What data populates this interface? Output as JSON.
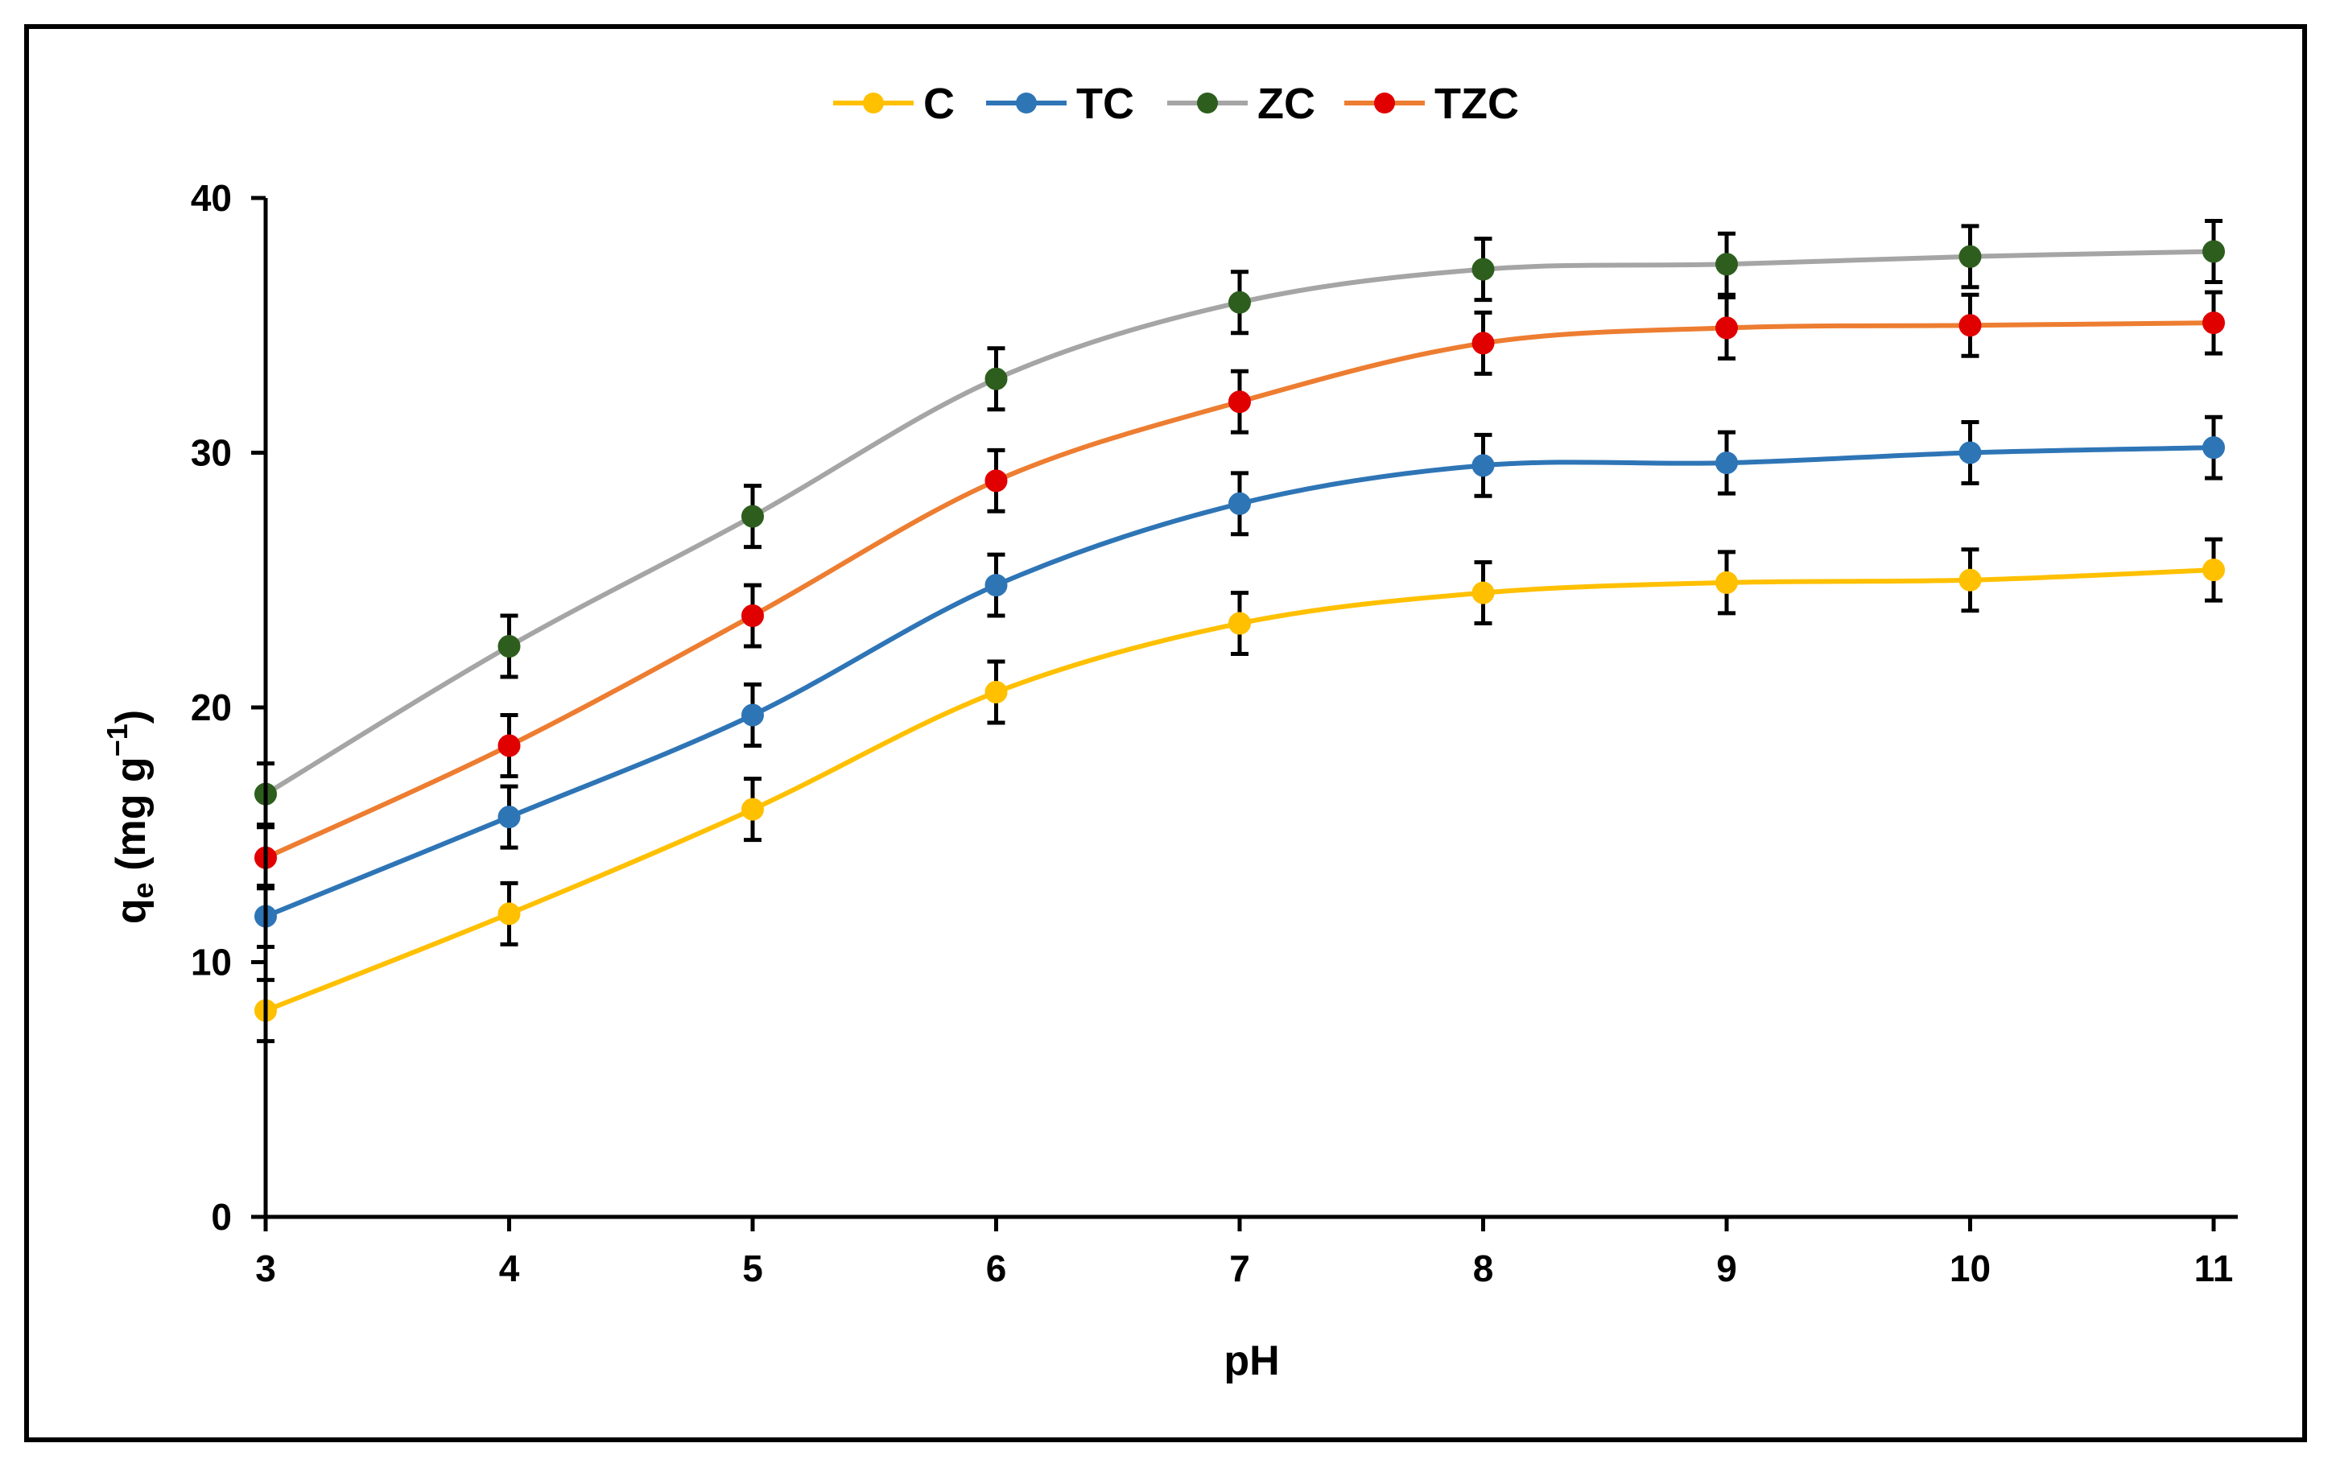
{
  "chart_data": {
    "type": "line",
    "title": "",
    "xlabel": "pH",
    "ylabel": {
      "base": "q",
      "subscript": "e",
      "units_prefix": " (mg g",
      "units_superscript": "−1",
      "units_suffix": ")"
    },
    "x": [
      3,
      4,
      5,
      6,
      7,
      8,
      9,
      10,
      11
    ],
    "x_tick_labels": [
      "3",
      "4",
      "5",
      "6",
      "7",
      "8",
      "9",
      "10",
      "11"
    ],
    "y_ticks": [
      0,
      10,
      20,
      30,
      40
    ],
    "y_tick_labels": [
      "0",
      "10",
      "20",
      "30",
      "40"
    ],
    "xlim": [
      3,
      11
    ],
    "ylim": [
      0,
      40
    ],
    "grid": false,
    "legend_position": "top-center",
    "smooth": true,
    "series": [
      {
        "name": "C",
        "line_color": "#FFC000",
        "marker_color": "#FFC000",
        "values": [
          8.1,
          11.9,
          16.0,
          20.6,
          23.3,
          24.5,
          24.9,
          25.0,
          25.4
        ],
        "errors": [
          1.2,
          1.2,
          1.2,
          1.2,
          1.2,
          1.2,
          1.2,
          1.2,
          1.2
        ]
      },
      {
        "name": "TC",
        "line_color": "#2E75B6",
        "marker_color": "#2E75B6",
        "values": [
          11.8,
          15.7,
          19.7,
          24.8,
          28.0,
          29.5,
          29.6,
          30.0,
          30.2
        ],
        "errors": [
          1.2,
          1.2,
          1.2,
          1.2,
          1.2,
          1.2,
          1.2,
          1.2,
          1.2
        ]
      },
      {
        "name": "ZC",
        "line_color": "#A5A5A5",
        "marker_color": "#2E5E1E",
        "values": [
          16.6,
          22.4,
          27.5,
          32.9,
          35.9,
          37.2,
          37.4,
          37.7,
          37.9
        ],
        "errors": [
          1.2,
          1.2,
          1.2,
          1.2,
          1.2,
          1.2,
          1.2,
          1.2,
          1.2
        ]
      },
      {
        "name": "TZC",
        "line_color": "#ED7D31",
        "marker_color": "#E00000",
        "values": [
          14.1,
          18.5,
          23.6,
          28.9,
          32.0,
          34.3,
          34.9,
          35.0,
          35.1
        ],
        "errors": [
          1.2,
          1.2,
          1.2,
          1.2,
          1.2,
          1.2,
          1.2,
          1.2,
          1.2
        ]
      }
    ]
  }
}
